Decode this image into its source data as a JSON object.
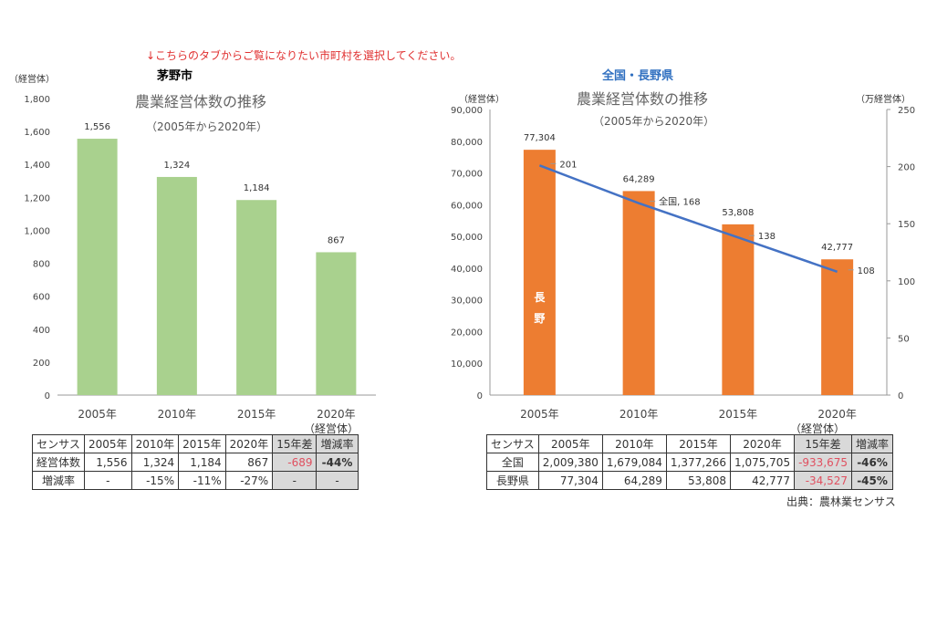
{
  "note": "↓こちらのタブからご覧になりたい市町村を選択してください。",
  "source": "出典：農林業センサス",
  "chart_data": [
    {
      "type": "bar",
      "heading": "茅野市",
      "title": "農業経営体数の推移",
      "subtitle": "（2005年から2020年）",
      "ylabel": "（経営体）",
      "xunit": "（経営体）",
      "categories": [
        "2005年",
        "2010年",
        "2015年",
        "2020年"
      ],
      "values": [
        1556,
        1324,
        1184,
        867
      ],
      "data_labels": [
        "1,556",
        "1,324",
        "1,184",
        "867"
      ],
      "ylim": [
        0,
        1800
      ],
      "yticks": [
        "0",
        "200",
        "400",
        "600",
        "800",
        "1,000",
        "1,200",
        "1,400",
        "1,600",
        "1,800"
      ],
      "color": "#a9d18e",
      "grid": false
    },
    {
      "type": "bar+line",
      "heading": "全国・長野県",
      "title": "農業経営体数の推移",
      "subtitle": "（2005年から2020年）",
      "ylabel": "（経営体）",
      "y2label": "（万経営体）",
      "xunit": "（経営体）",
      "categories": [
        "2005年",
        "2010年",
        "2015年",
        "2020年"
      ],
      "series": [
        {
          "name": "長野",
          "kind": "bar",
          "axis": "left",
          "values": [
            77304,
            64289,
            53808,
            42777
          ],
          "data_labels": [
            "77,304",
            "64,289",
            "53,808",
            "42,777"
          ],
          "color": "#ed7d31",
          "inner_label": [
            "長",
            "野"
          ]
        },
        {
          "name": "全国",
          "kind": "line",
          "axis": "right",
          "values": [
            201,
            168,
            138,
            108
          ],
          "data_labels": [
            "201",
            "全国, 168",
            "138",
            "108"
          ],
          "color": "#4472c4"
        }
      ],
      "ylim": [
        0,
        90000
      ],
      "yticks": [
        "0",
        "10,000",
        "20,000",
        "30,000",
        "40,000",
        "50,000",
        "60,000",
        "70,000",
        "80,000",
        "90,000"
      ],
      "y2lim": [
        0,
        250
      ],
      "y2ticks": [
        "0",
        "50",
        "100",
        "150",
        "200",
        "250"
      ],
      "grid": false
    }
  ],
  "tables": [
    {
      "header": [
        "センサス",
        "2005年",
        "2010年",
        "2015年",
        "2020年",
        "15年差",
        "増減率"
      ],
      "rows": [
        [
          "経営体数",
          "1,556",
          "1,324",
          "1,184",
          "867",
          "-689",
          "-44%"
        ],
        [
          "増減率",
          "-",
          "-15%",
          "-11%",
          "-27%",
          "-",
          "-"
        ]
      ]
    },
    {
      "header": [
        "センサス",
        "2005年",
        "2010年",
        "2015年",
        "2020年",
        "15年差",
        "増減率"
      ],
      "rows": [
        [
          "全国",
          "2,009,380",
          "1,679,084",
          "1,377,266",
          "1,075,705",
          "-933,675",
          "-46%"
        ],
        [
          "長野県",
          "77,304",
          "64,289",
          "53,808",
          "42,777",
          "-34,527",
          "-45%"
        ]
      ]
    }
  ]
}
